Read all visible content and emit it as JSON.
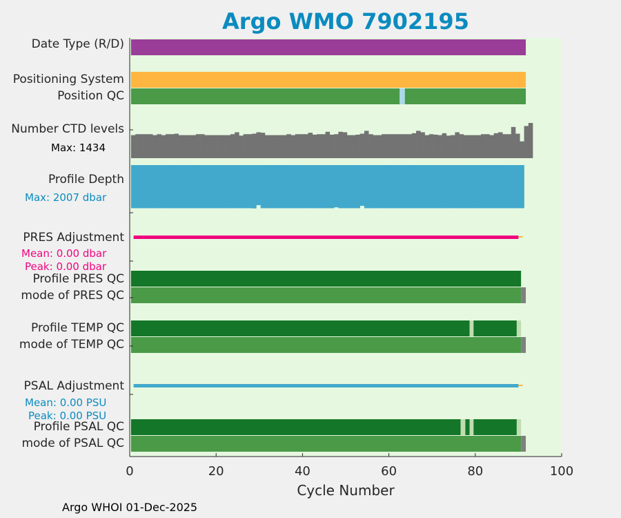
{
  "chart_data": {
    "type": "bar",
    "title": "Argo WMO 7902195",
    "xlabel": "Cycle Number",
    "xlim": [
      0,
      100
    ],
    "xticks": [
      0,
      20,
      40,
      60,
      80,
      100
    ],
    "footer": "Argo WHOI 01-Dec-2025",
    "colors": {
      "background": "#e6f9e0",
      "date_type": "#993d99",
      "positioning": "#ffb640",
      "good": "#4a9a47",
      "dark_good": "#147628",
      "light_qc": "#c0dcb0",
      "position_gap": "#aad8e8",
      "grey": "#808080",
      "ctd": "#737373",
      "depth": "#42a9cc",
      "pres": "#f0047f",
      "psal": "#42a9cc",
      "tail": "#ffb640"
    },
    "rows": {
      "date_type": {
        "label": "Date Type (R/D)",
        "segments": [
          [
            0.3,
            91.7,
            "date_type"
          ]
        ]
      },
      "positioning": {
        "label": "Positioning System",
        "segments": [
          [
            0.3,
            91.7,
            "positioning"
          ]
        ]
      },
      "position_qc": {
        "label": "Position QC",
        "segments": [
          [
            0.3,
            62.5,
            "good"
          ],
          [
            62.5,
            63.7,
            "position_gap"
          ],
          [
            63.7,
            91.7,
            "good"
          ]
        ]
      },
      "ctd": {
        "label": "Number CTD levels",
        "max_label": "Max: 1434",
        "max": 1434,
        "values": [
          1180,
          1200,
          1200,
          1200,
          1200,
          1180,
          1200,
          1180,
          1200,
          1200,
          1210,
          1180,
          1180,
          1180,
          1180,
          1200,
          1200,
          1180,
          1180,
          1180,
          1180,
          1180,
          1180,
          1200,
          1240,
          1170,
          1200,
          1200,
          1210,
          1240,
          1230,
          1180,
          1180,
          1180,
          1180,
          1180,
          1200,
          1180,
          1200,
          1200,
          1200,
          1230,
          1190,
          1200,
          1200,
          1250,
          1190,
          1200,
          1250,
          1240,
          1180,
          1180,
          1190,
          1210,
          1270,
          1200,
          1180,
          1180,
          1200,
          1200,
          1200,
          1200,
          1200,
          1200,
          1200,
          1220,
          1270,
          1240,
          1180,
          1200,
          1190,
          1180,
          1220,
          1170,
          1180,
          1240,
          1200,
          1180,
          1180,
          1180,
          1180,
          1200,
          1200,
          1180,
          1220,
          1240,
          1200,
          1200,
          1350,
          1210,
          1050,
          1370,
          1434
        ]
      },
      "depth": {
        "label": "Profile Depth",
        "max_label": "Max: 2007 dbar",
        "max": 2007,
        "values_note": "near-max all cycles",
        "dips": [
          [
            29,
            1850
          ],
          [
            47,
            1950
          ],
          [
            53,
            1880
          ],
          [
            28,
            2000
          ]
        ]
      },
      "pres_adj": {
        "label": "PRES Adjustment",
        "mean": "Mean: 0.00 dbar",
        "peak": "Peak: 0.00 dbar",
        "segments": [
          [
            0.9,
            90,
            "pres"
          ],
          [
            90,
            91,
            "tail"
          ]
        ]
      },
      "pres_qc": {
        "label": "Profile PRES QC",
        "segments": [
          [
            0.3,
            90.6,
            "dark_good"
          ]
        ]
      },
      "pres_mode": {
        "label": "mode of PRES QC",
        "segments": [
          [
            0.3,
            90.6,
            "good"
          ],
          [
            90.6,
            91.7,
            "grey"
          ]
        ]
      },
      "temp_qc": {
        "label": "Profile TEMP QC",
        "segments": [
          [
            0.3,
            78.7,
            "dark_good"
          ],
          [
            78.7,
            79.6,
            "light_qc"
          ],
          [
            79.6,
            89.6,
            "dark_good"
          ],
          [
            89.6,
            90.6,
            "light_qc"
          ]
        ]
      },
      "temp_mode": {
        "label": "mode of TEMP QC",
        "segments": [
          [
            0.3,
            90.6,
            "good"
          ],
          [
            90.6,
            91.7,
            "grey"
          ]
        ]
      },
      "psal_adj": {
        "label": "PSAL Adjustment",
        "mean": "Mean: 0.00 PSU",
        "peak": "Peak: 0.00 PSU",
        "segments": [
          [
            0.9,
            90,
            "psal"
          ],
          [
            90,
            91,
            "tail"
          ]
        ]
      },
      "psal_qc": {
        "label": "Profile PSAL QC",
        "segments": [
          [
            0.3,
            76.6,
            "dark_good"
          ],
          [
            76.6,
            77.7,
            "light_qc"
          ],
          [
            77.7,
            78.7,
            "dark_good"
          ],
          [
            78.7,
            79.6,
            "light_qc"
          ],
          [
            79.6,
            89.6,
            "dark_good"
          ],
          [
            89.6,
            90.6,
            "light_qc"
          ]
        ]
      },
      "psal_mode": {
        "label": "mode of PSAL QC",
        "segments": [
          [
            0.3,
            90.6,
            "good"
          ],
          [
            90.6,
            91.7,
            "grey"
          ]
        ]
      }
    }
  }
}
